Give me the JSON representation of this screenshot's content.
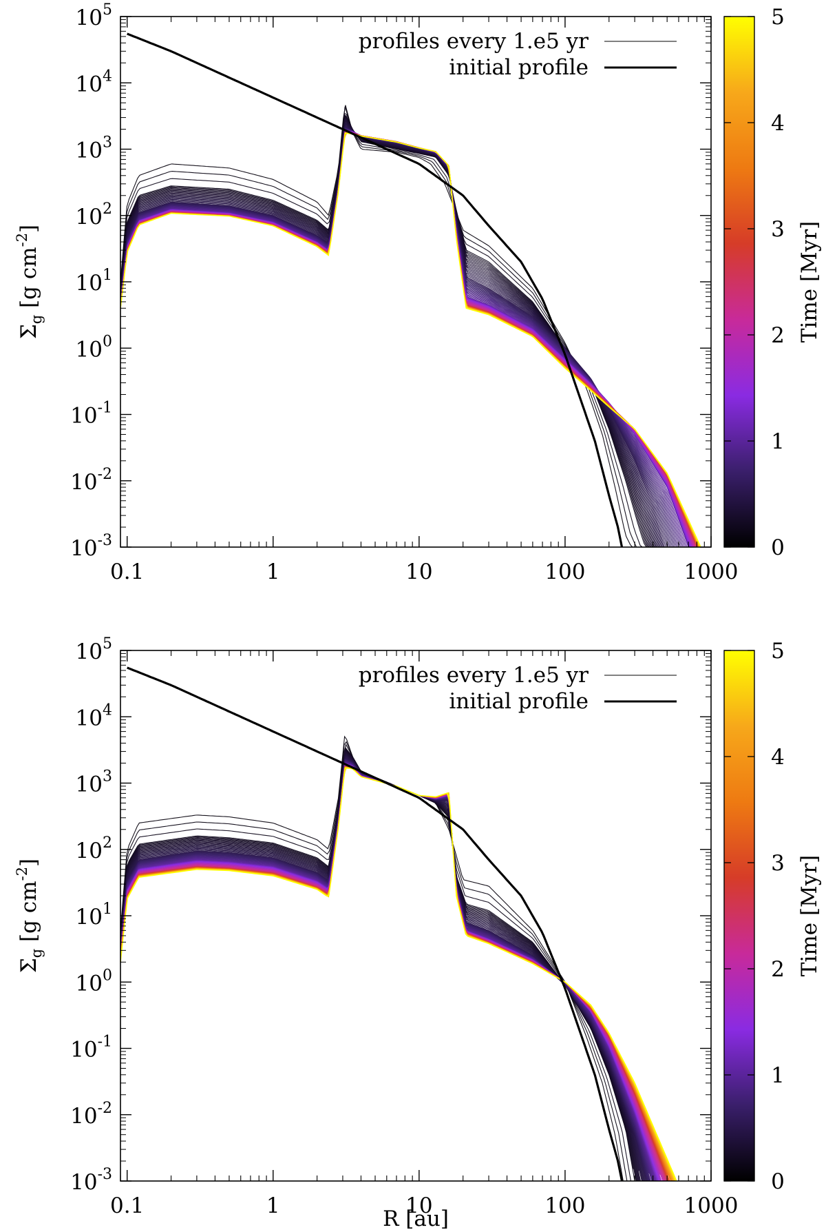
{
  "chart_data": [
    {
      "type": "line",
      "panel": "top",
      "xlabel": "R [au]",
      "ylabel_parts": {
        "main": "Σ",
        "sub": "g",
        "unit": " [g cm",
        "exp": "-2",
        "close": "]"
      },
      "xscale": "log",
      "yscale": "log",
      "xlim": [
        0.09,
        1000
      ],
      "ylim": [
        0.001,
        100000
      ],
      "x_ticks": [
        {
          "value": 0.1,
          "label": "0.1"
        },
        {
          "value": 1,
          "label": "1"
        },
        {
          "value": 10,
          "label": "10"
        },
        {
          "value": 100,
          "label": "100"
        },
        {
          "value": 1000,
          "label": "1000"
        }
      ],
      "y_ticks": [
        {
          "value": 100000,
          "base": "10",
          "exp": "5"
        },
        {
          "value": 10000,
          "base": "10",
          "exp": "4"
        },
        {
          "value": 1000,
          "base": "10",
          "exp": "3"
        },
        {
          "value": 100,
          "base": "10",
          "exp": "2"
        },
        {
          "value": 10,
          "base": "10",
          "exp": "1"
        },
        {
          "value": 1,
          "base": "10",
          "exp": "0"
        },
        {
          "value": 0.1,
          "base": "10",
          "exp": "-1"
        },
        {
          "value": 0.01,
          "base": "10",
          "exp": "-2"
        },
        {
          "value": 0.001,
          "base": "10",
          "exp": "-3"
        }
      ],
      "legend": {
        "position": "top-right",
        "entries": [
          {
            "label": "profiles every 1.e5 yr",
            "style": "thin"
          },
          {
            "label": "initial profile",
            "style": "thick"
          }
        ]
      },
      "colorbar": {
        "label": "Time [Myr]",
        "range": [
          0,
          5
        ],
        "ticks": [
          "0",
          "1",
          "2",
          "3",
          "4",
          "5"
        ],
        "colors": [
          "#000000",
          "#3a1f6b",
          "#8a2be2",
          "#c82a9a",
          "#d63c28",
          "#ee7a12",
          "#f7a81a",
          "#ffff00"
        ]
      },
      "initial_profile": {
        "x": [
          0.1,
          0.2,
          0.5,
          1,
          2,
          3,
          5,
          10,
          20,
          30,
          50,
          70,
          100,
          130,
          160,
          200,
          230,
          245
        ],
        "y": [
          55000,
          30000,
          12000,
          6000,
          3000,
          2000,
          1200,
          600,
          200,
          70,
          20,
          5.5,
          0.8,
          0.15,
          0.04,
          0.006,
          0.002,
          0.001
        ]
      },
      "profiles": [
        {
          "time_myr": 0.1,
          "x": [
            0.09,
            0.1,
            0.12,
            0.2,
            0.5,
            1,
            2,
            2.4,
            2.8,
            3.1,
            3.5,
            4,
            7,
            10,
            12,
            15,
            17,
            20,
            30,
            60,
            100,
            140,
            180,
            220,
            260,
            300
          ],
          "y": [
            10,
            150,
            400,
            600,
            520,
            350,
            160,
            100,
            500,
            5000,
            1800,
            1000,
            900,
            750,
            600,
            300,
            150,
            60,
            35,
            8,
            1.2,
            0.25,
            0.05,
            0.008,
            0.0015,
            0.0008
          ]
        },
        {
          "time_myr": 0.2,
          "x": [
            0.09,
            0.1,
            0.12,
            0.2,
            0.5,
            1,
            2,
            2.4,
            2.8,
            3.1,
            3.5,
            4,
            7,
            10,
            13,
            16,
            18,
            21,
            30,
            60,
            100,
            150,
            200,
            260,
            320,
            360
          ],
          "y": [
            8,
            80,
            200,
            280,
            250,
            170,
            85,
            60,
            400,
            3500,
            2000,
            1300,
            1000,
            860,
            760,
            400,
            120,
            30,
            20,
            5,
            1,
            0.3,
            0.06,
            0.01,
            0.002,
            0.0009
          ]
        },
        {
          "time_myr": 0.5,
          "x": [
            0.09,
            0.1,
            0.12,
            0.2,
            0.5,
            1,
            2,
            2.4,
            2.8,
            3.1,
            3.5,
            4,
            7,
            10,
            13,
            16,
            18,
            21,
            30,
            60,
            100,
            150,
            200,
            300,
            400,
            480
          ],
          "y": [
            6,
            45,
            110,
            160,
            140,
            100,
            50,
            38,
            300,
            2200,
            1900,
            1500,
            1200,
            1000,
            850,
            500,
            80,
            12,
            8,
            3,
            1,
            0.35,
            0.12,
            0.02,
            0.004,
            0.001
          ]
        },
        {
          "time_myr": 1.0,
          "x": [
            0.09,
            0.1,
            0.12,
            0.2,
            0.5,
            1,
            2,
            2.4,
            2.8,
            3.1,
            3.5,
            4,
            7,
            10,
            13,
            16,
            18,
            21,
            30,
            60,
            100,
            150,
            200,
            300,
            500,
            700
          ],
          "y": [
            5,
            35,
            85,
            125,
            110,
            80,
            40,
            30,
            260,
            1900,
            1850,
            1600,
            1300,
            1050,
            900,
            550,
            60,
            6,
            4.5,
            2,
            0.7,
            0.3,
            0.15,
            0.05,
            0.008,
            0.001
          ]
        },
        {
          "time_myr": 2.5,
          "x": [
            0.09,
            0.1,
            0.12,
            0.2,
            0.5,
            1,
            2,
            2.4,
            2.8,
            3.1,
            3.5,
            4,
            7,
            10,
            13,
            16,
            18,
            21,
            30,
            60,
            100,
            150,
            200,
            300,
            500,
            800
          ],
          "y": [
            4,
            30,
            75,
            112,
            100,
            72,
            36,
            27,
            240,
            1800,
            1750,
            1600,
            1300,
            1050,
            920,
            560,
            50,
            4.5,
            3.5,
            1.6,
            0.55,
            0.25,
            0.14,
            0.06,
            0.012,
            0.001
          ]
        },
        {
          "time_myr": 5.0,
          "x": [
            0.09,
            0.1,
            0.12,
            0.2,
            0.5,
            1,
            2,
            2.4,
            2.8,
            3.1,
            3.5,
            4,
            7,
            10,
            13,
            16,
            18,
            21,
            30,
            60,
            100,
            150,
            200,
            300,
            500,
            850
          ],
          "y": [
            4,
            28,
            72,
            108,
            98,
            70,
            34,
            25,
            230,
            1750,
            1700,
            1580,
            1280,
            1040,
            920,
            560,
            45,
            4,
            3.2,
            1.5,
            0.5,
            0.23,
            0.13,
            0.06,
            0.013,
            0.001
          ]
        }
      ]
    },
    {
      "type": "line",
      "panel": "bottom",
      "xlabel": "R [au]",
      "ylabel_parts": {
        "main": "Σ",
        "sub": "g",
        "unit": " [g cm",
        "exp": "-2",
        "close": "]"
      },
      "xscale": "log",
      "yscale": "log",
      "xlim": [
        0.09,
        1000
      ],
      "ylim": [
        0.001,
        100000
      ],
      "x_ticks": [
        {
          "value": 0.1,
          "label": "0.1"
        },
        {
          "value": 1,
          "label": "1"
        },
        {
          "value": 10,
          "label": "10"
        },
        {
          "value": 100,
          "label": "100"
        },
        {
          "value": 1000,
          "label": "1000"
        }
      ],
      "y_ticks": [
        {
          "value": 100000,
          "base": "10",
          "exp": "5"
        },
        {
          "value": 10000,
          "base": "10",
          "exp": "4"
        },
        {
          "value": 1000,
          "base": "10",
          "exp": "3"
        },
        {
          "value": 100,
          "base": "10",
          "exp": "2"
        },
        {
          "value": 10,
          "base": "10",
          "exp": "1"
        },
        {
          "value": 1,
          "base": "10",
          "exp": "0"
        },
        {
          "value": 0.1,
          "base": "10",
          "exp": "-1"
        },
        {
          "value": 0.01,
          "base": "10",
          "exp": "-2"
        },
        {
          "value": 0.001,
          "base": "10",
          "exp": "-3"
        }
      ],
      "legend": {
        "position": "top-right",
        "entries": [
          {
            "label": "profiles every 1.e5 yr",
            "style": "thin"
          },
          {
            "label": "initial profile",
            "style": "thick"
          }
        ]
      },
      "colorbar": {
        "label": "Time [Myr]",
        "range": [
          0,
          5
        ],
        "ticks": [
          "0",
          "1",
          "2",
          "3",
          "4",
          "5"
        ],
        "colors": [
          "#000000",
          "#3a1f6b",
          "#8a2be2",
          "#c82a9a",
          "#d63c28",
          "#ee7a12",
          "#f7a81a",
          "#ffff00"
        ]
      },
      "initial_profile": {
        "x": [
          0.1,
          0.2,
          0.5,
          1,
          2,
          3,
          5,
          10,
          20,
          30,
          50,
          70,
          100,
          130,
          160,
          200,
          230,
          245
        ],
        "y": [
          55000,
          30000,
          12000,
          6000,
          3000,
          2000,
          1200,
          600,
          200,
          70,
          20,
          5.5,
          0.8,
          0.15,
          0.04,
          0.006,
          0.002,
          0.001
        ]
      },
      "profiles": [
        {
          "time_myr": 0.1,
          "x": [
            0.09,
            0.1,
            0.12,
            0.3,
            0.5,
            1,
            2,
            2.4,
            2.8,
            3.1,
            3.5,
            4,
            7,
            10,
            13,
            16,
            18,
            20,
            30,
            60,
            100,
            140,
            180,
            220,
            250
          ],
          "y": [
            6,
            100,
            250,
            330,
            310,
            250,
            140,
            100,
            600,
            5500,
            2500,
            1500,
            900,
            650,
            500,
            200,
            80,
            35,
            28,
            6,
            1,
            0.15,
            0.03,
            0.005,
            0.001
          ]
        },
        {
          "time_myr": 0.2,
          "x": [
            0.09,
            0.1,
            0.12,
            0.3,
            0.5,
            1,
            2,
            2.4,
            2.8,
            3.1,
            3.5,
            4,
            7,
            10,
            13,
            16,
            18,
            21,
            30,
            60,
            100,
            150,
            200,
            260,
            300
          ],
          "y": [
            5,
            60,
            120,
            160,
            150,
            125,
            75,
            55,
            400,
            3500,
            2500,
            1500,
            900,
            650,
            500,
            300,
            40,
            15,
            12,
            4,
            0.9,
            0.2,
            0.04,
            0.006,
            0.001
          ]
        },
        {
          "time_myr": 0.5,
          "x": [
            0.09,
            0.1,
            0.12,
            0.3,
            0.5,
            1,
            2,
            2.4,
            2.8,
            3.1,
            3.5,
            4,
            7,
            10,
            13,
            16,
            18,
            21,
            30,
            60,
            100,
            150,
            200,
            300,
            360
          ],
          "y": [
            4,
            35,
            70,
            95,
            90,
            75,
            45,
            34,
            300,
            2400,
            2100,
            1400,
            900,
            650,
            550,
            550,
            30,
            8,
            6,
            2.5,
            0.9,
            0.25,
            0.06,
            0.005,
            0.001
          ]
        },
        {
          "time_myr": 1.0,
          "x": [
            0.09,
            0.1,
            0.12,
            0.3,
            0.5,
            1,
            2,
            2.4,
            2.8,
            3.1,
            3.5,
            4,
            7,
            10,
            13,
            16,
            18,
            21,
            30,
            60,
            100,
            150,
            200,
            300,
            420
          ],
          "y": [
            3,
            25,
            52,
            70,
            66,
            56,
            34,
            26,
            260,
            2000,
            1850,
            1300,
            900,
            650,
            580,
            650,
            25,
            6,
            4.5,
            2.2,
            1,
            0.35,
            0.1,
            0.01,
            0.001
          ]
        },
        {
          "time_myr": 2.5,
          "x": [
            0.09,
            0.1,
            0.12,
            0.3,
            0.5,
            1,
            2,
            2.4,
            2.8,
            3.1,
            3.5,
            4,
            7,
            10,
            13,
            16,
            18,
            21,
            30,
            60,
            100,
            150,
            200,
            300,
            500
          ],
          "y": [
            2.5,
            20,
            42,
            55,
            52,
            44,
            27,
            21,
            230,
            1800,
            1700,
            1250,
            900,
            650,
            600,
            700,
            22,
            5.5,
            4,
            2,
            1,
            0.4,
            0.15,
            0.02,
            0.001
          ]
        },
        {
          "time_myr": 5.0,
          "x": [
            0.09,
            0.1,
            0.12,
            0.3,
            0.5,
            1,
            2,
            2.4,
            2.8,
            3.1,
            3.5,
            4,
            7,
            10,
            13,
            16,
            18,
            21,
            30,
            60,
            100,
            150,
            200,
            300,
            580
          ],
          "y": [
            2,
            18,
            38,
            50,
            48,
            40,
            25,
            19,
            220,
            1700,
            1650,
            1250,
            900,
            650,
            620,
            720,
            20,
            5,
            3.8,
            1.9,
            1,
            0.45,
            0.17,
            0.03,
            0.001
          ]
        }
      ]
    }
  ]
}
